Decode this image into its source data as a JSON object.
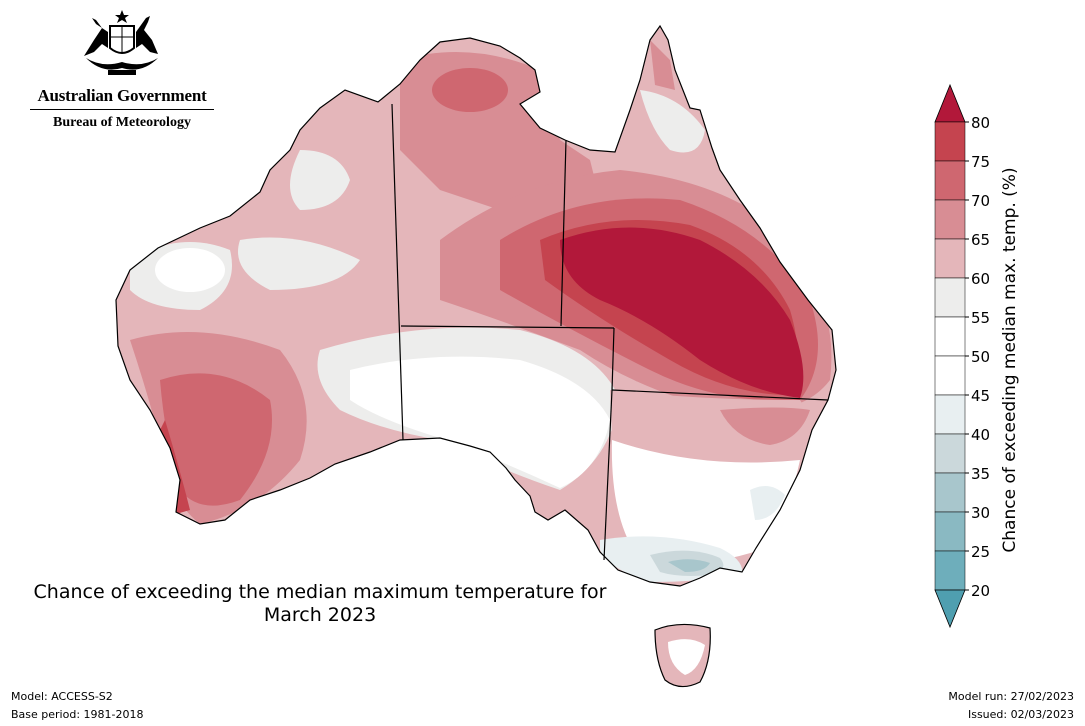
{
  "header": {
    "government": "Australian Government",
    "agency": "Bureau of Meteorology"
  },
  "map": {
    "title_line1": "Chance of exceeding the median maximum temperature for",
    "title_line2": "March 2023",
    "region": "Australia"
  },
  "legend": {
    "label": "Chance of exceeding median max. temp. (%)",
    "ticks": [
      "80",
      "75",
      "70",
      "65",
      "60",
      "55",
      "50",
      "45",
      "40",
      "35",
      "30",
      "25",
      "20"
    ],
    "colors": {
      "gt80": "#b2183a",
      "75_80": "#c5444f",
      "70_75": "#cf6770",
      "65_70": "#d88d94",
      "60_65": "#e4b6ba",
      "55_60": "#ededec",
      "50_55": "#ffffff",
      "45_50": "#ffffff",
      "40_45": "#e8eff1",
      "35_40": "#cbd8db",
      "30_35": "#a8c6cc",
      "25_30": "#8ab9c2",
      "20_25": "#6eaebb",
      "lt20": "#4f9fb0"
    }
  },
  "footer": {
    "model": "Model: ACCESS-S2",
    "base_period": "Base period: 1981-2018",
    "model_run": "Model run: 27/02/2023",
    "issued": "Issued: 02/03/2023"
  }
}
